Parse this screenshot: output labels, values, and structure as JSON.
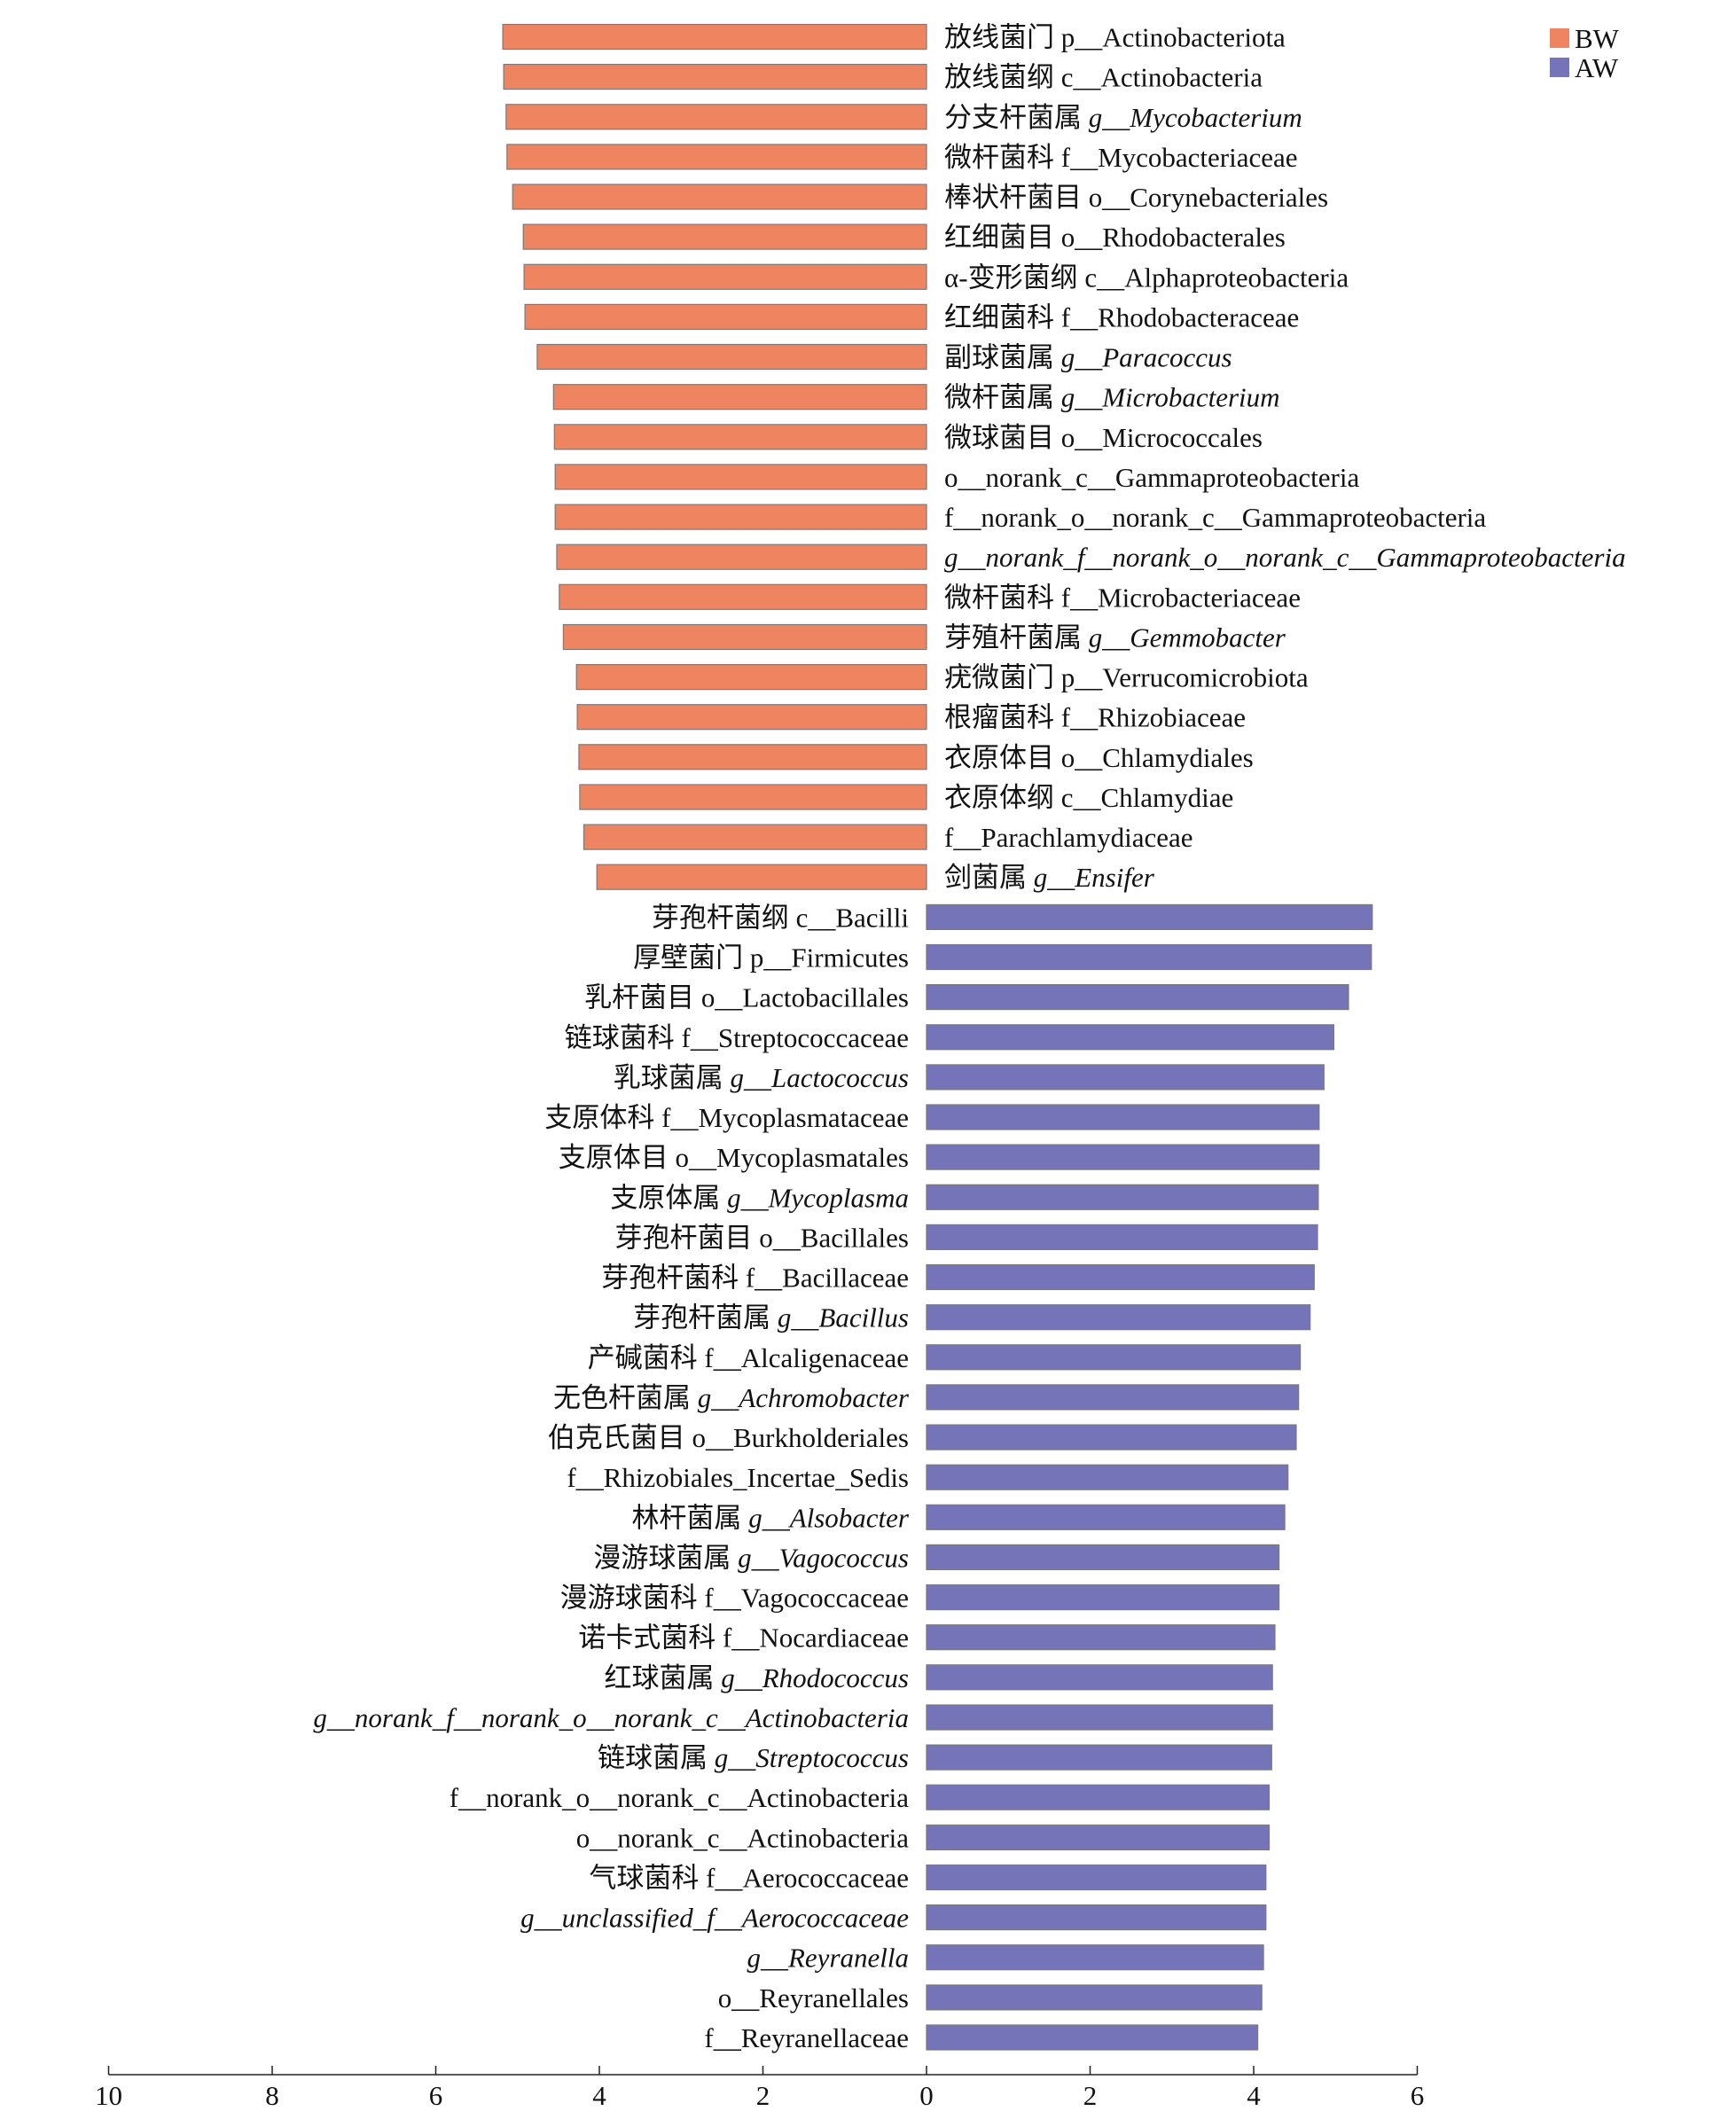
{
  "chart_data": {
    "type": "bar",
    "orientation": "horizontal-diverging",
    "title": "",
    "xlabel": "",
    "ylabel": "",
    "xlim": [
      -10,
      6
    ],
    "x_ticks": [
      {
        "value": -10,
        "label": "10"
      },
      {
        "value": -8,
        "label": "8"
      },
      {
        "value": -6,
        "label": "6"
      },
      {
        "value": -4,
        "label": "4"
      },
      {
        "value": -2,
        "label": "2"
      },
      {
        "value": 0,
        "label": "0"
      },
      {
        "value": 2,
        "label": "2"
      },
      {
        "value": 4,
        "label": "4"
      },
      {
        "value": 6,
        "label": "6"
      }
    ],
    "legend_position": "top-right",
    "legend": [
      {
        "name": "BW",
        "color": "#ee8560"
      },
      {
        "name": "AW",
        "color": "#7674b8"
      }
    ],
    "series": [
      {
        "name": "BW",
        "color": "#ee8560",
        "side": "left",
        "items": [
          {
            "cn": "放线菌门",
            "sci": "p__Actinobacteriota",
            "italic": false,
            "value": 5.18
          },
          {
            "cn": "放线菌纲",
            "sci": "c__Actinobacteria",
            "italic": false,
            "value": 5.17
          },
          {
            "cn": "分支杆菌属",
            "sci": "g__Mycobacterium",
            "italic": true,
            "value": 5.14
          },
          {
            "cn": "微杆菌科",
            "sci": "f__Mycobacteriaceae",
            "italic": false,
            "value": 5.13
          },
          {
            "cn": "棒状杆菌目",
            "sci": "o__Corynebacteriales",
            "italic": false,
            "value": 5.06
          },
          {
            "cn": "红细菌目",
            "sci": "o__Rhodobacterales",
            "italic": false,
            "value": 4.93
          },
          {
            "cn": "α-变形菌纲",
            "sci": "c__Alphaproteobacteria",
            "italic": false,
            "value": 4.92
          },
          {
            "cn": "红细菌科",
            "sci": "f__Rhodobacteraceae",
            "italic": false,
            "value": 4.91
          },
          {
            "cn": "副球菌属",
            "sci": "g__Paracoccus",
            "italic": true,
            "value": 4.76
          },
          {
            "cn": "微杆菌属",
            "sci": "g__Microbacterium",
            "italic": true,
            "value": 4.56
          },
          {
            "cn": "微球菌目",
            "sci": "o__Micrococcales",
            "italic": false,
            "value": 4.55
          },
          {
            "cn": "",
            "sci": "o__norank_c__Gammaproteobacteria",
            "italic": false,
            "value": 4.54
          },
          {
            "cn": "",
            "sci": "f__norank_o__norank_c__Gammaproteobacteria",
            "italic": false,
            "value": 4.54
          },
          {
            "cn": "",
            "sci": "g__norank_f__norank_o__norank_c__Gammaproteobacteria",
            "italic": true,
            "value": 4.52
          },
          {
            "cn": "微杆菌科",
            "sci": "f__Microbacteriaceae",
            "italic": false,
            "value": 4.49
          },
          {
            "cn": "芽殖杆菌属",
            "sci": "g__Gemmobacter",
            "italic": true,
            "value": 4.44
          },
          {
            "cn": "疣微菌门",
            "sci": "p__Verrucomicrobiota",
            "italic": false,
            "value": 4.28
          },
          {
            "cn": "根瘤菌科",
            "sci": "f__Rhizobiaceae",
            "italic": false,
            "value": 4.27
          },
          {
            "cn": "衣原体目",
            "sci": "o__Chlamydiales",
            "italic": false,
            "value": 4.25
          },
          {
            "cn": "衣原体纲",
            "sci": "c__Chlamydiae",
            "italic": false,
            "value": 4.24
          },
          {
            "cn": "",
            "sci": "f__Parachlamydiaceae",
            "italic": false,
            "value": 4.19
          },
          {
            "cn": "剑菌属",
            "sci": "g__Ensifer",
            "italic": true,
            "value": 4.03
          }
        ]
      },
      {
        "name": "AW",
        "color": "#7674b8",
        "side": "right",
        "items": [
          {
            "cn": "芽孢杆菌纲",
            "sci": "c__Bacilli",
            "italic": false,
            "value": 5.45
          },
          {
            "cn": "厚壁菌门",
            "sci": "p__Firmicutes",
            "italic": false,
            "value": 5.44
          },
          {
            "cn": "乳杆菌目",
            "sci": "o__Lactobacillales",
            "italic": false,
            "value": 5.16
          },
          {
            "cn": "链球菌科",
            "sci": "f__Streptococcaceae",
            "italic": false,
            "value": 4.98
          },
          {
            "cn": "乳球菌属",
            "sci": "g__Lactococcus",
            "italic": true,
            "value": 4.86
          },
          {
            "cn": "支原体科",
            "sci": "f__Mycoplasmataceae",
            "italic": false,
            "value": 4.8
          },
          {
            "cn": "支原体目",
            "sci": "o__Mycoplasmatales",
            "italic": false,
            "value": 4.8
          },
          {
            "cn": "支原体属",
            "sci": "g__Mycoplasma",
            "italic": true,
            "value": 4.79
          },
          {
            "cn": "芽孢杆菌目",
            "sci": "o__Bacillales",
            "italic": false,
            "value": 4.78
          },
          {
            "cn": "芽孢杆菌科",
            "sci": "f__Bacillaceae",
            "italic": false,
            "value": 4.74
          },
          {
            "cn": "芽孢杆菌属",
            "sci": "g__Bacillus",
            "italic": true,
            "value": 4.69
          },
          {
            "cn": "产碱菌科",
            "sci": "f__Alcaligenaceae",
            "italic": false,
            "value": 4.57
          },
          {
            "cn": "无色杆菌属",
            "sci": "g__Achromobacter",
            "italic": true,
            "value": 4.55
          },
          {
            "cn": "伯克氏菌目",
            "sci": "o__Burkholderiales",
            "italic": false,
            "value": 4.52
          },
          {
            "cn": "",
            "sci": "f__Rhizobiales_Incertae_Sedis",
            "italic": false,
            "value": 4.42
          },
          {
            "cn": "林杆菌属",
            "sci": "g__Alsobacter",
            "italic": true,
            "value": 4.38
          },
          {
            "cn": "漫游球菌属",
            "sci": "g__Vagococcus",
            "italic": true,
            "value": 4.31
          },
          {
            "cn": "漫游球菌科",
            "sci": "f__Vagococcaceae",
            "italic": false,
            "value": 4.31
          },
          {
            "cn": "诺卡式菌科",
            "sci": "f__Nocardiaceae",
            "italic": false,
            "value": 4.26
          },
          {
            "cn": "红球菌属",
            "sci": "g__Rhodococcus",
            "italic": true,
            "value": 4.23
          },
          {
            "cn": "",
            "sci": "g__norank_f__norank_o__norank_c__Actinobacteria",
            "italic": true,
            "value": 4.23
          },
          {
            "cn": "链球菌属",
            "sci": "g__Streptococcus",
            "italic": true,
            "value": 4.22
          },
          {
            "cn": "",
            "sci": "f__norank_o__norank_c__Actinobacteria",
            "italic": false,
            "value": 4.19
          },
          {
            "cn": "",
            "sci": "o__norank_c__Actinobacteria",
            "italic": false,
            "value": 4.19
          },
          {
            "cn": "气球菌科",
            "sci": "f__Aerococcaceae",
            "italic": false,
            "value": 4.15
          },
          {
            "cn": "",
            "sci": "g__unclassified_f__Aerococcaceae",
            "italic": true,
            "value": 4.15
          },
          {
            "cn": "",
            "sci": "g__Reyranella",
            "italic": true,
            "value": 4.12
          },
          {
            "cn": "",
            "sci": "o__Reyranellales",
            "italic": false,
            "value": 4.1
          },
          {
            "cn": "",
            "sci": "f__Reyranellaceae",
            "italic": false,
            "value": 4.05
          }
        ]
      }
    ]
  }
}
